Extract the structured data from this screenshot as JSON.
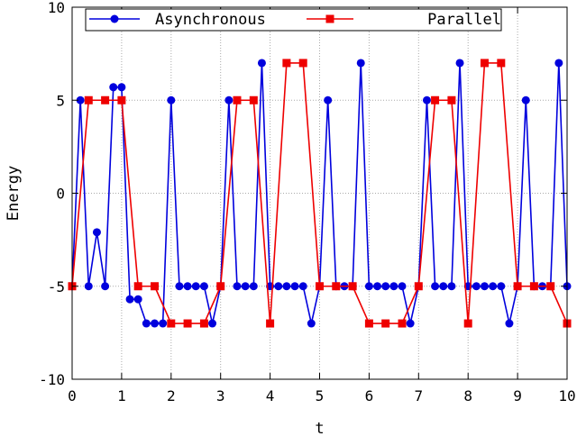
{
  "chart_data": {
    "type": "line",
    "title": "",
    "xlabel": "t",
    "ylabel": "Energy",
    "xlim": [
      0,
      10
    ],
    "ylim": [
      -10,
      10
    ],
    "xticks": [
      0,
      1,
      2,
      3,
      4,
      5,
      6,
      7,
      8,
      9,
      10
    ],
    "yticks": [
      -10,
      -5,
      0,
      5,
      10
    ],
    "grid": true,
    "legend_position": "top",
    "series": [
      {
        "name": "Asynchronous",
        "color": "#0000dd",
        "marker": "circle",
        "x": [
          0,
          0.167,
          0.333,
          0.5,
          0.667,
          0.833,
          1.0,
          1.167,
          1.333,
          1.5,
          1.667,
          1.833,
          2.0,
          2.167,
          2.333,
          2.5,
          2.667,
          2.833,
          3.0,
          3.167,
          3.333,
          3.5,
          3.667,
          3.833,
          4.0,
          4.167,
          4.333,
          4.5,
          4.667,
          4.833,
          5.0,
          5.167,
          5.333,
          5.5,
          5.667,
          5.833,
          6.0,
          6.167,
          6.333,
          6.5,
          6.667,
          6.833,
          7.0,
          7.167,
          7.333,
          7.5,
          7.667,
          7.833,
          8.0,
          8.167,
          8.333,
          8.5,
          8.667,
          8.833,
          9.0,
          9.167,
          9.333,
          9.5,
          9.667,
          9.833,
          10.0
        ],
        "y": [
          -5,
          5,
          -5,
          -2.1,
          -5,
          5.7,
          5.7,
          -5.7,
          -5.7,
          -7,
          -7,
          -7,
          5,
          -5,
          -5,
          -5,
          -5,
          -7,
          -5,
          5,
          -5,
          -5,
          -5,
          7,
          -5,
          -5,
          -5,
          -5,
          -5,
          -7,
          -5,
          5,
          -5,
          -5,
          -5,
          7,
          -5,
          -5,
          -5,
          -5,
          -5,
          -7,
          -5,
          5,
          -5,
          -5,
          -5,
          7,
          -5,
          -5,
          -5,
          -5,
          -5,
          -7,
          -5,
          5,
          -5,
          -5,
          -5,
          7,
          -5
        ]
      },
      {
        "name": "Parallel",
        "color": "#ee0000",
        "marker": "square",
        "x": [
          0,
          0.333,
          0.667,
          1.0,
          1.333,
          1.667,
          2.0,
          2.333,
          2.667,
          3.0,
          3.333,
          3.667,
          4.0,
          4.333,
          4.667,
          5.0,
          5.333,
          5.667,
          6.0,
          6.333,
          6.667,
          7.0,
          7.333,
          7.667,
          8.0,
          8.333,
          8.667,
          9.0,
          9.333,
          9.667,
          10.0
        ],
        "y": [
          -5,
          5,
          5,
          5,
          -5,
          -5,
          -7,
          -7,
          -7,
          -5,
          5,
          5,
          -7,
          7,
          7,
          -5,
          -5,
          -5,
          -7,
          -7,
          -7,
          -5,
          5,
          5,
          -7,
          7,
          7,
          -5,
          -5,
          -5,
          -7
        ]
      }
    ]
  }
}
